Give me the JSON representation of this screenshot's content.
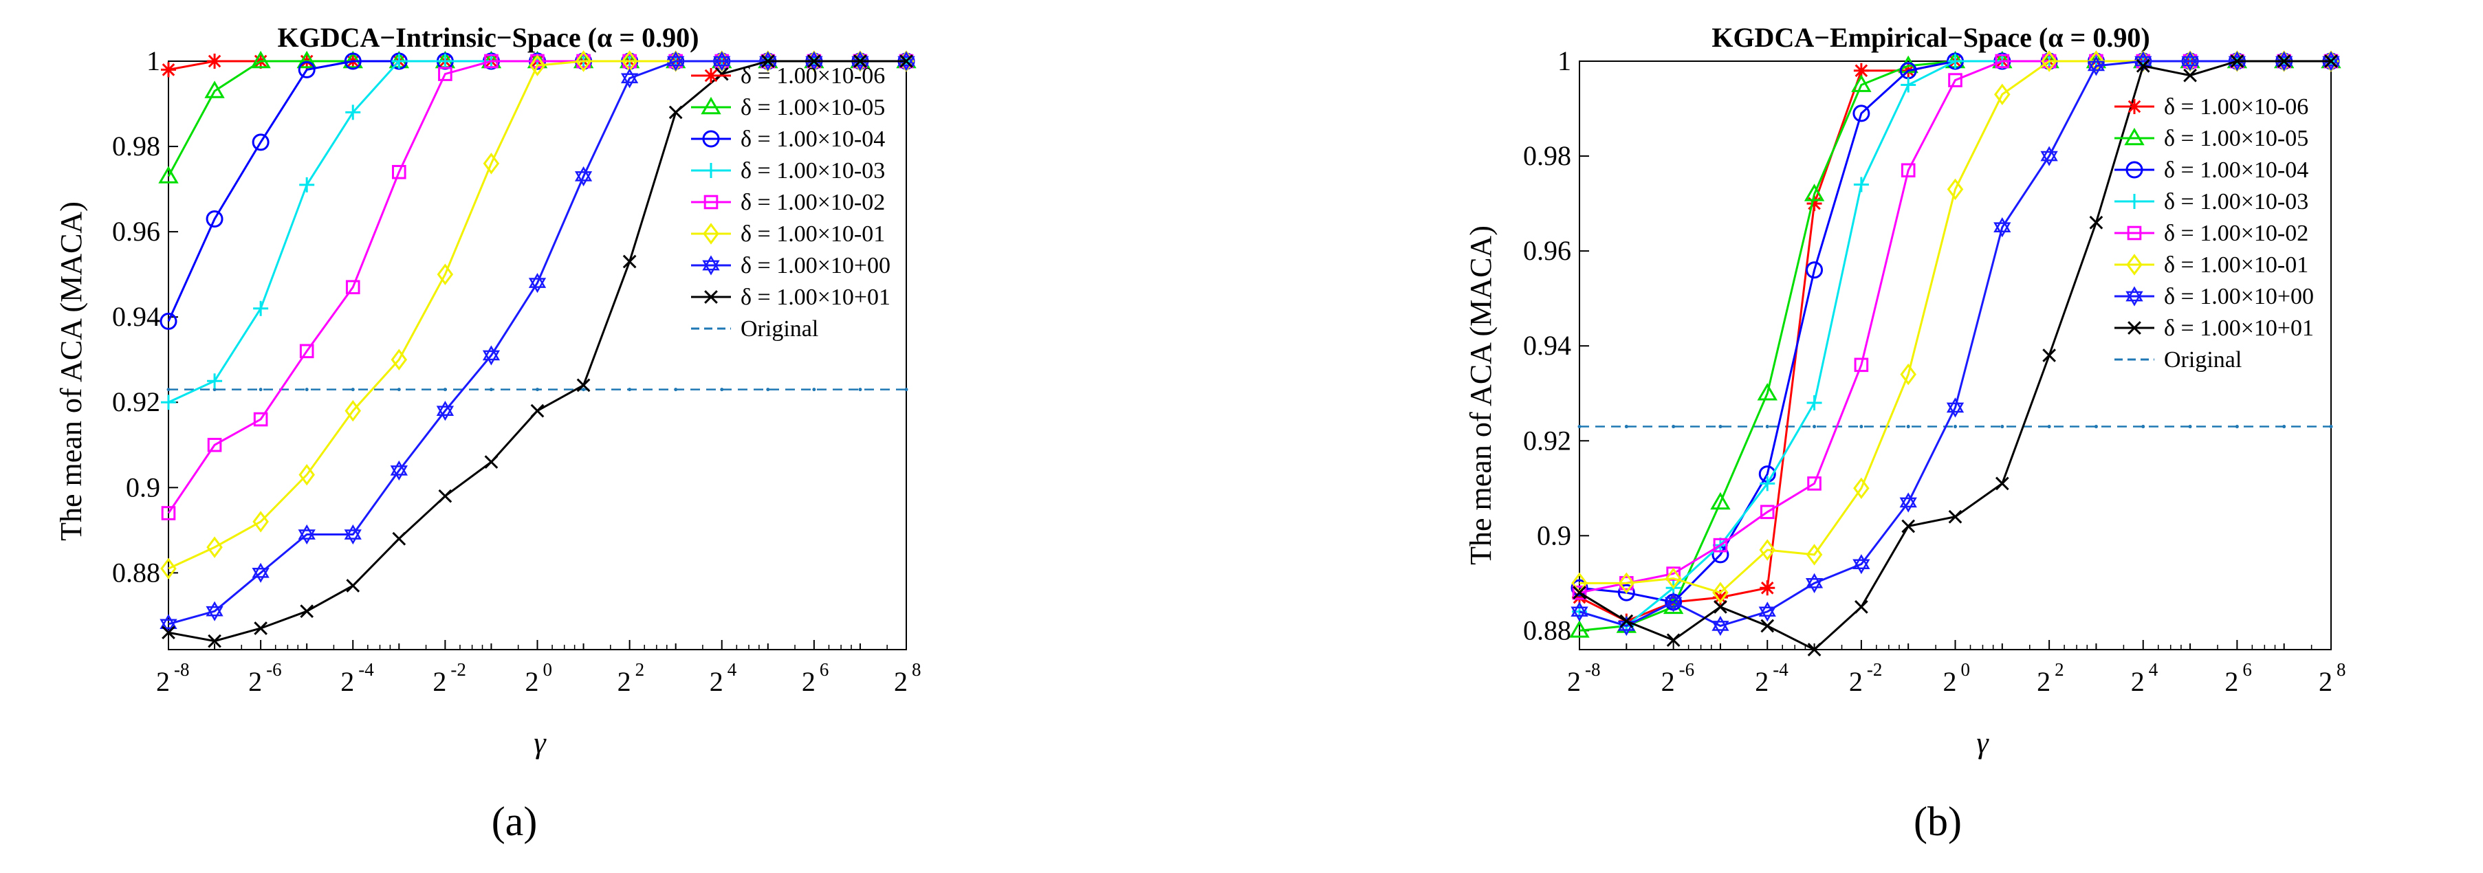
{
  "chart_data": [
    {
      "type": "line",
      "title": "KGDCA−Intrinsic−Space (α = 0.90)",
      "xlabel": "γ",
      "ylabel": "The mean of ACA (MACA)",
      "caption": "(a)",
      "x_scale": "log2",
      "x_exponents": [
        -8,
        -7,
        -6,
        -5,
        -4,
        -3,
        -2,
        -1,
        0,
        1,
        2,
        3,
        4,
        5,
        6,
        7,
        8
      ],
      "x_tick_exponents": [
        "-8",
        "-6",
        "-4",
        "-2",
        "0",
        "2",
        "4",
        "6",
        "8"
      ],
      "xlim_exponent": [
        -8,
        8
      ],
      "ylim": [
        0.862,
        1.0
      ],
      "y_ticks": [
        "0.88",
        "0.9",
        "0.92",
        "0.94",
        "0.96",
        "0.98",
        "1"
      ],
      "y_tick_values": [
        0.88,
        0.9,
        0.92,
        0.94,
        0.96,
        0.98,
        1.0
      ],
      "legend_position": "right-upper",
      "original_value": 0.923,
      "series": [
        {
          "name": "δ = 1.00×10-06",
          "color": "#ff0000",
          "marker": "asterisk",
          "values": [
            0.998,
            1.0,
            1.0,
            1.0,
            1.0,
            1.0,
            1.0,
            1.0,
            1.0,
            1.0,
            1.0,
            1.0,
            1.0,
            1.0,
            1.0,
            1.0,
            1.0
          ]
        },
        {
          "name": "δ = 1.00×10-05",
          "color": "#00dd00",
          "marker": "triangle",
          "values": [
            0.973,
            0.993,
            1.0,
            1.0,
            1.0,
            1.0,
            1.0,
            1.0,
            1.0,
            1.0,
            1.0,
            1.0,
            1.0,
            1.0,
            1.0,
            1.0,
            1.0
          ]
        },
        {
          "name": "δ = 1.00×10-04",
          "color": "#0000ff",
          "marker": "circle",
          "values": [
            0.939,
            0.963,
            0.981,
            0.998,
            1.0,
            1.0,
            1.0,
            1.0,
            1.0,
            1.0,
            1.0,
            1.0,
            1.0,
            1.0,
            1.0,
            1.0,
            1.0
          ]
        },
        {
          "name": "δ = 1.00×10-03",
          "color": "#00e5ee",
          "marker": "plus",
          "values": [
            0.92,
            0.925,
            0.942,
            0.971,
            0.988,
            1.0,
            1.0,
            1.0,
            1.0,
            1.0,
            1.0,
            1.0,
            1.0,
            1.0,
            1.0,
            1.0,
            1.0
          ]
        },
        {
          "name": "δ = 1.00×10-02",
          "color": "#ff00ff",
          "marker": "square",
          "values": [
            0.894,
            0.91,
            0.916,
            0.932,
            0.947,
            0.974,
            0.997,
            1.0,
            1.0,
            1.0,
            1.0,
            1.0,
            1.0,
            1.0,
            1.0,
            1.0,
            1.0
          ]
        },
        {
          "name": "δ = 1.00×10-01",
          "color": "#f2f200",
          "marker": "diamond",
          "values": [
            0.881,
            0.886,
            0.892,
            0.903,
            0.918,
            0.93,
            0.95,
            0.976,
            0.999,
            1.0,
            1.0,
            1.0,
            1.0,
            1.0,
            1.0,
            1.0,
            1.0
          ]
        },
        {
          "name": "δ = 1.00×10+00",
          "color": "#1a1aff",
          "marker": "hexagram",
          "values": [
            0.868,
            0.871,
            0.88,
            0.889,
            0.889,
            0.904,
            0.918,
            0.931,
            0.948,
            0.973,
            0.996,
            1.0,
            1.0,
            1.0,
            1.0,
            1.0,
            1.0
          ]
        },
        {
          "name": "δ = 1.00×10+01",
          "color": "#000000",
          "marker": "x",
          "values": [
            0.866,
            0.864,
            0.867,
            0.871,
            0.877,
            0.888,
            0.898,
            0.906,
            0.918,
            0.924,
            0.953,
            0.988,
            0.997,
            1.0,
            1.0,
            1.0,
            1.0
          ]
        }
      ],
      "original_label": "Original"
    },
    {
      "type": "line",
      "title": "KGDCA−Empirical−Space (α = 0.90)",
      "xlabel": "γ",
      "ylabel": "The mean of ACA (MACA)",
      "caption": "(b)",
      "x_scale": "log2",
      "x_exponents": [
        -8,
        -7,
        -6,
        -5,
        -4,
        -3,
        -2,
        -1,
        0,
        1,
        2,
        3,
        4,
        5,
        6,
        7,
        8
      ],
      "x_tick_exponents": [
        "-8",
        "-6",
        "-4",
        "-2",
        "0",
        "2",
        "4",
        "6",
        "8"
      ],
      "xlim_exponent": [
        -8,
        8
      ],
      "ylim": [
        0.876,
        1.0
      ],
      "y_ticks": [
        "0.88",
        "0.9",
        "0.92",
        "0.94",
        "0.96",
        "0.98",
        "1"
      ],
      "y_tick_values": [
        0.88,
        0.9,
        0.92,
        0.94,
        0.96,
        0.98,
        1.0
      ],
      "legend_position": "right-upper",
      "original_value": 0.923,
      "series": [
        {
          "name": "δ = 1.00×10-06",
          "color": "#ff0000",
          "marker": "asterisk",
          "values": [
            0.887,
            0.882,
            0.886,
            0.887,
            0.889,
            0.97,
            0.998,
            0.998,
            1.0,
            1.0,
            1.0,
            1.0,
            1.0,
            1.0,
            1.0,
            1.0,
            1.0
          ]
        },
        {
          "name": "δ = 1.00×10-05",
          "color": "#00dd00",
          "marker": "triangle",
          "values": [
            0.88,
            0.881,
            0.885,
            0.907,
            0.93,
            0.972,
            0.995,
            0.999,
            1.0,
            1.0,
            1.0,
            1.0,
            1.0,
            1.0,
            1.0,
            1.0,
            1.0
          ]
        },
        {
          "name": "δ = 1.00×10-04",
          "color": "#0000ff",
          "marker": "circle",
          "values": [
            0.889,
            0.888,
            0.886,
            0.896,
            0.913,
            0.956,
            0.989,
            0.998,
            1.0,
            1.0,
            1.0,
            1.0,
            1.0,
            1.0,
            1.0,
            1.0,
            1.0
          ]
        },
        {
          "name": "δ = 1.00×10-03",
          "color": "#00e5ee",
          "marker": "plus",
          "values": [
            0.884,
            0.881,
            0.889,
            0.898,
            0.911,
            0.928,
            0.974,
            0.995,
            1.0,
            1.0,
            1.0,
            1.0,
            1.0,
            1.0,
            1.0,
            1.0,
            1.0
          ]
        },
        {
          "name": "δ = 1.00×10-02",
          "color": "#ff00ff",
          "marker": "square",
          "values": [
            0.888,
            0.89,
            0.892,
            0.898,
            0.905,
            0.911,
            0.936,
            0.977,
            0.996,
            1.0,
            1.0,
            1.0,
            1.0,
            1.0,
            1.0,
            1.0,
            1.0
          ]
        },
        {
          "name": "δ = 1.00×10-01",
          "color": "#f2f200",
          "marker": "diamond",
          "values": [
            0.89,
            0.89,
            0.891,
            0.888,
            0.897,
            0.896,
            0.91,
            0.934,
            0.973,
            0.993,
            1.0,
            1.0,
            1.0,
            1.0,
            1.0,
            1.0,
            1.0
          ]
        },
        {
          "name": "δ = 1.00×10+00",
          "color": "#1a1aff",
          "marker": "hexagram",
          "values": [
            0.884,
            0.881,
            0.886,
            0.881,
            0.884,
            0.89,
            0.894,
            0.907,
            0.927,
            0.965,
            0.98,
            0.999,
            1.0,
            1.0,
            1.0,
            1.0,
            1.0
          ]
        },
        {
          "name": "δ = 1.00×10+01",
          "color": "#000000",
          "marker": "x",
          "values": [
            0.888,
            0.882,
            0.878,
            0.885,
            0.881,
            0.876,
            0.885,
            0.902,
            0.904,
            0.911,
            0.938,
            0.966,
            0.999,
            0.997,
            1.0,
            1.0,
            1.0
          ]
        }
      ],
      "original_label": "Original"
    }
  ]
}
